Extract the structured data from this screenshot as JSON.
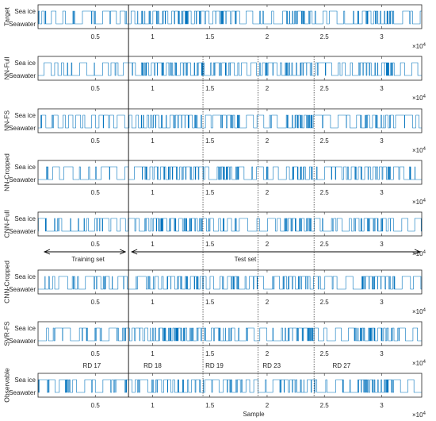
{
  "chart_data": {
    "type": "line",
    "panels": [
      {
        "label": "Target",
        "seed": 11
      },
      {
        "label": "NN-Full",
        "seed": 23
      },
      {
        "label": "NN-FS",
        "seed": 37
      },
      {
        "label": "NN-Cropped",
        "seed": 41
      },
      {
        "label": "CNN-Full",
        "seed": 53
      },
      {
        "label": "CNN-Cropped",
        "seed": 67
      },
      {
        "label": "SVR-FS",
        "seed": 79
      },
      {
        "label": "Observable",
        "seed": 97
      }
    ],
    "y_categories": [
      "Seawater",
      "Sea ice"
    ],
    "x_ticks": [
      {
        "value": 5000,
        "label": "0.5"
      },
      {
        "value": 10000,
        "label": "1"
      },
      {
        "value": 15000,
        "label": "1.5"
      },
      {
        "value": 20000,
        "label": "2"
      },
      {
        "value": 25000,
        "label": "2.5"
      },
      {
        "value": 30000,
        "label": "3"
      }
    ],
    "x_multiplier": "×10",
    "x_multiplier_exp": "4",
    "xlim": [
      0,
      33500
    ],
    "xlabel": "Sample",
    "split_line": 7900,
    "boundaries": [
      14400,
      19200,
      24100
    ],
    "regions": [
      {
        "label": "RD 17",
        "x": 4700
      },
      {
        "label": "RD 18",
        "x": 10000
      },
      {
        "label": "RD 19",
        "x": 15400
      },
      {
        "label": "RD 23",
        "x": 20400
      },
      {
        "label": "RD 27",
        "x": 26500
      }
    ],
    "training_label": "Training set",
    "test_label": "Test set"
  }
}
